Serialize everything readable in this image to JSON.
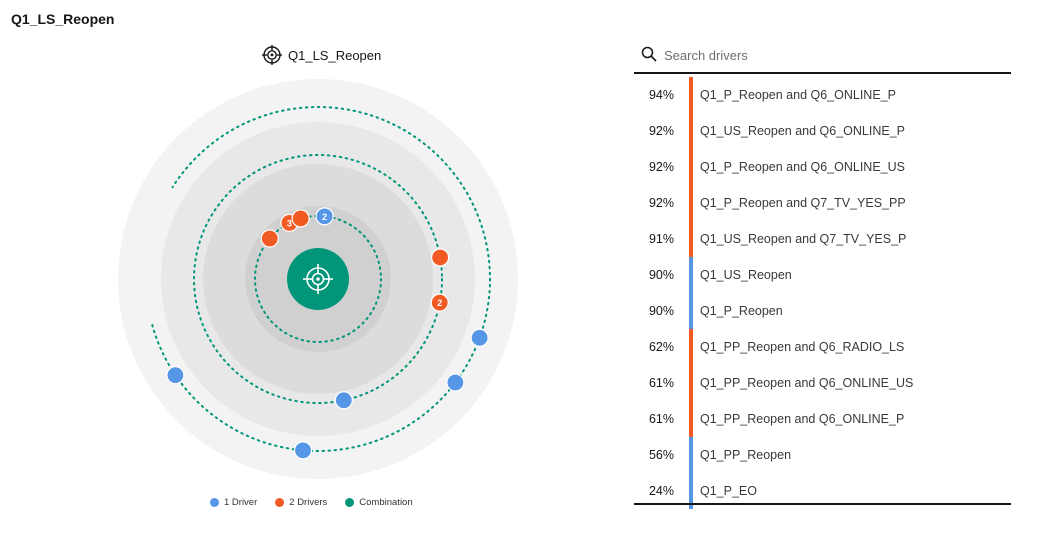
{
  "page_title": "Q1_LS_Reopen",
  "chart_header": {
    "label": "Q1_LS_Reopen",
    "icon": "target-icon"
  },
  "colors": {
    "one_driver": "#5596e6",
    "two_drivers": "#f15a22",
    "combination": "#01967a",
    "orbit": "#01967a",
    "ring_outer": "#f3f3f3",
    "ring_middle": "#e8e8e8",
    "ring_inner": "#dcdcdc",
    "ring_core": "#d0d0d0",
    "bar_red": "#f15a22",
    "bar_blue": "#5596e6"
  },
  "legend": [
    {
      "label": "1 Driver",
      "color": "#5596e6"
    },
    {
      "label": "2 Drivers",
      "color": "#f15a22"
    },
    {
      "label": "Combination",
      "color": "#01967a"
    }
  ],
  "radial_nodes": [
    {
      "type": "two",
      "orbit": "inner",
      "badge": "3"
    },
    {
      "type": "two",
      "orbit": "inner",
      "badge": ""
    },
    {
      "type": "one",
      "orbit": "inner",
      "badge": "2"
    },
    {
      "type": "two",
      "orbit": "inner",
      "badge": ""
    },
    {
      "type": "two",
      "orbit": "middle",
      "badge": ""
    },
    {
      "type": "two",
      "orbit": "middle",
      "badge": "2"
    },
    {
      "type": "one",
      "orbit": "middle",
      "badge": ""
    },
    {
      "type": "one",
      "orbit": "outer",
      "badge": ""
    },
    {
      "type": "one",
      "orbit": "outer",
      "badge": ""
    },
    {
      "type": "one",
      "orbit": "outer",
      "badge": ""
    },
    {
      "type": "one",
      "orbit": "outer",
      "badge": ""
    }
  ],
  "search": {
    "placeholder": "Search drivers",
    "icon": "search-icon"
  },
  "drivers": [
    {
      "pct": "94%",
      "name": "Q1_P_Reopen and Q6_ONLINE_P",
      "type": "two"
    },
    {
      "pct": "92%",
      "name": "Q1_US_Reopen and Q6_ONLINE_P",
      "type": "two"
    },
    {
      "pct": "92%",
      "name": "Q1_P_Reopen and Q6_ONLINE_US",
      "type": "two"
    },
    {
      "pct": "92%",
      "name": "Q1_P_Reopen and Q7_TV_YES_PP",
      "type": "two"
    },
    {
      "pct": "91%",
      "name": "Q1_US_Reopen and Q7_TV_YES_P",
      "type": "two"
    },
    {
      "pct": "90%",
      "name": "Q1_US_Reopen",
      "type": "one"
    },
    {
      "pct": "90%",
      "name": "Q1_P_Reopen",
      "type": "one"
    },
    {
      "pct": "62%",
      "name": "Q1_PP_Reopen and Q6_RADIO_LS",
      "type": "two"
    },
    {
      "pct": "61%",
      "name": "Q1_PP_Reopen and Q6_ONLINE_US",
      "type": "two"
    },
    {
      "pct": "61%",
      "name": "Q1_PP_Reopen and Q6_ONLINE_P",
      "type": "two"
    },
    {
      "pct": "56%",
      "name": "Q1_PP_Reopen",
      "type": "one"
    },
    {
      "pct": "24%",
      "name": "Q1_P_EO",
      "type": "one"
    }
  ]
}
